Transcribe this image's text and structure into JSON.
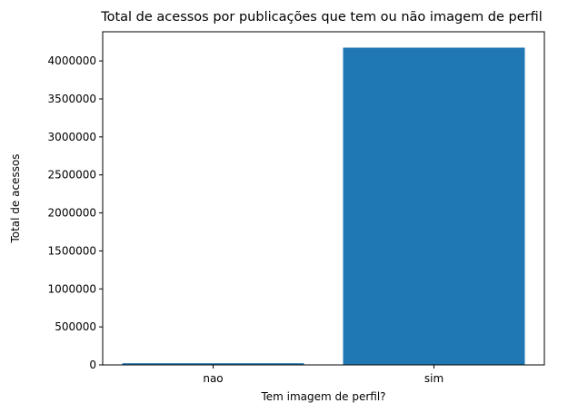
{
  "chart_data": {
    "type": "bar",
    "title": "Total de acessos por publicações que tem ou não imagem de perfil",
    "xlabel": "Tem imagem de perfil?",
    "ylabel": "Total de acessos",
    "categories": [
      "nao",
      "sim"
    ],
    "values": [
      22000,
      4175000
    ],
    "ylim": [
      0,
      4383750
    ],
    "yticks": [
      0,
      500000,
      1000000,
      1500000,
      2000000,
      2500000,
      3000000,
      3500000,
      4000000
    ],
    "ytick_labels": [
      "0",
      "500000",
      "1000000",
      "1500000",
      "2000000",
      "2500000",
      "3000000",
      "3500000",
      "4000000"
    ],
    "bar_color": "#1f77b4",
    "grid": false,
    "legend": "none"
  }
}
